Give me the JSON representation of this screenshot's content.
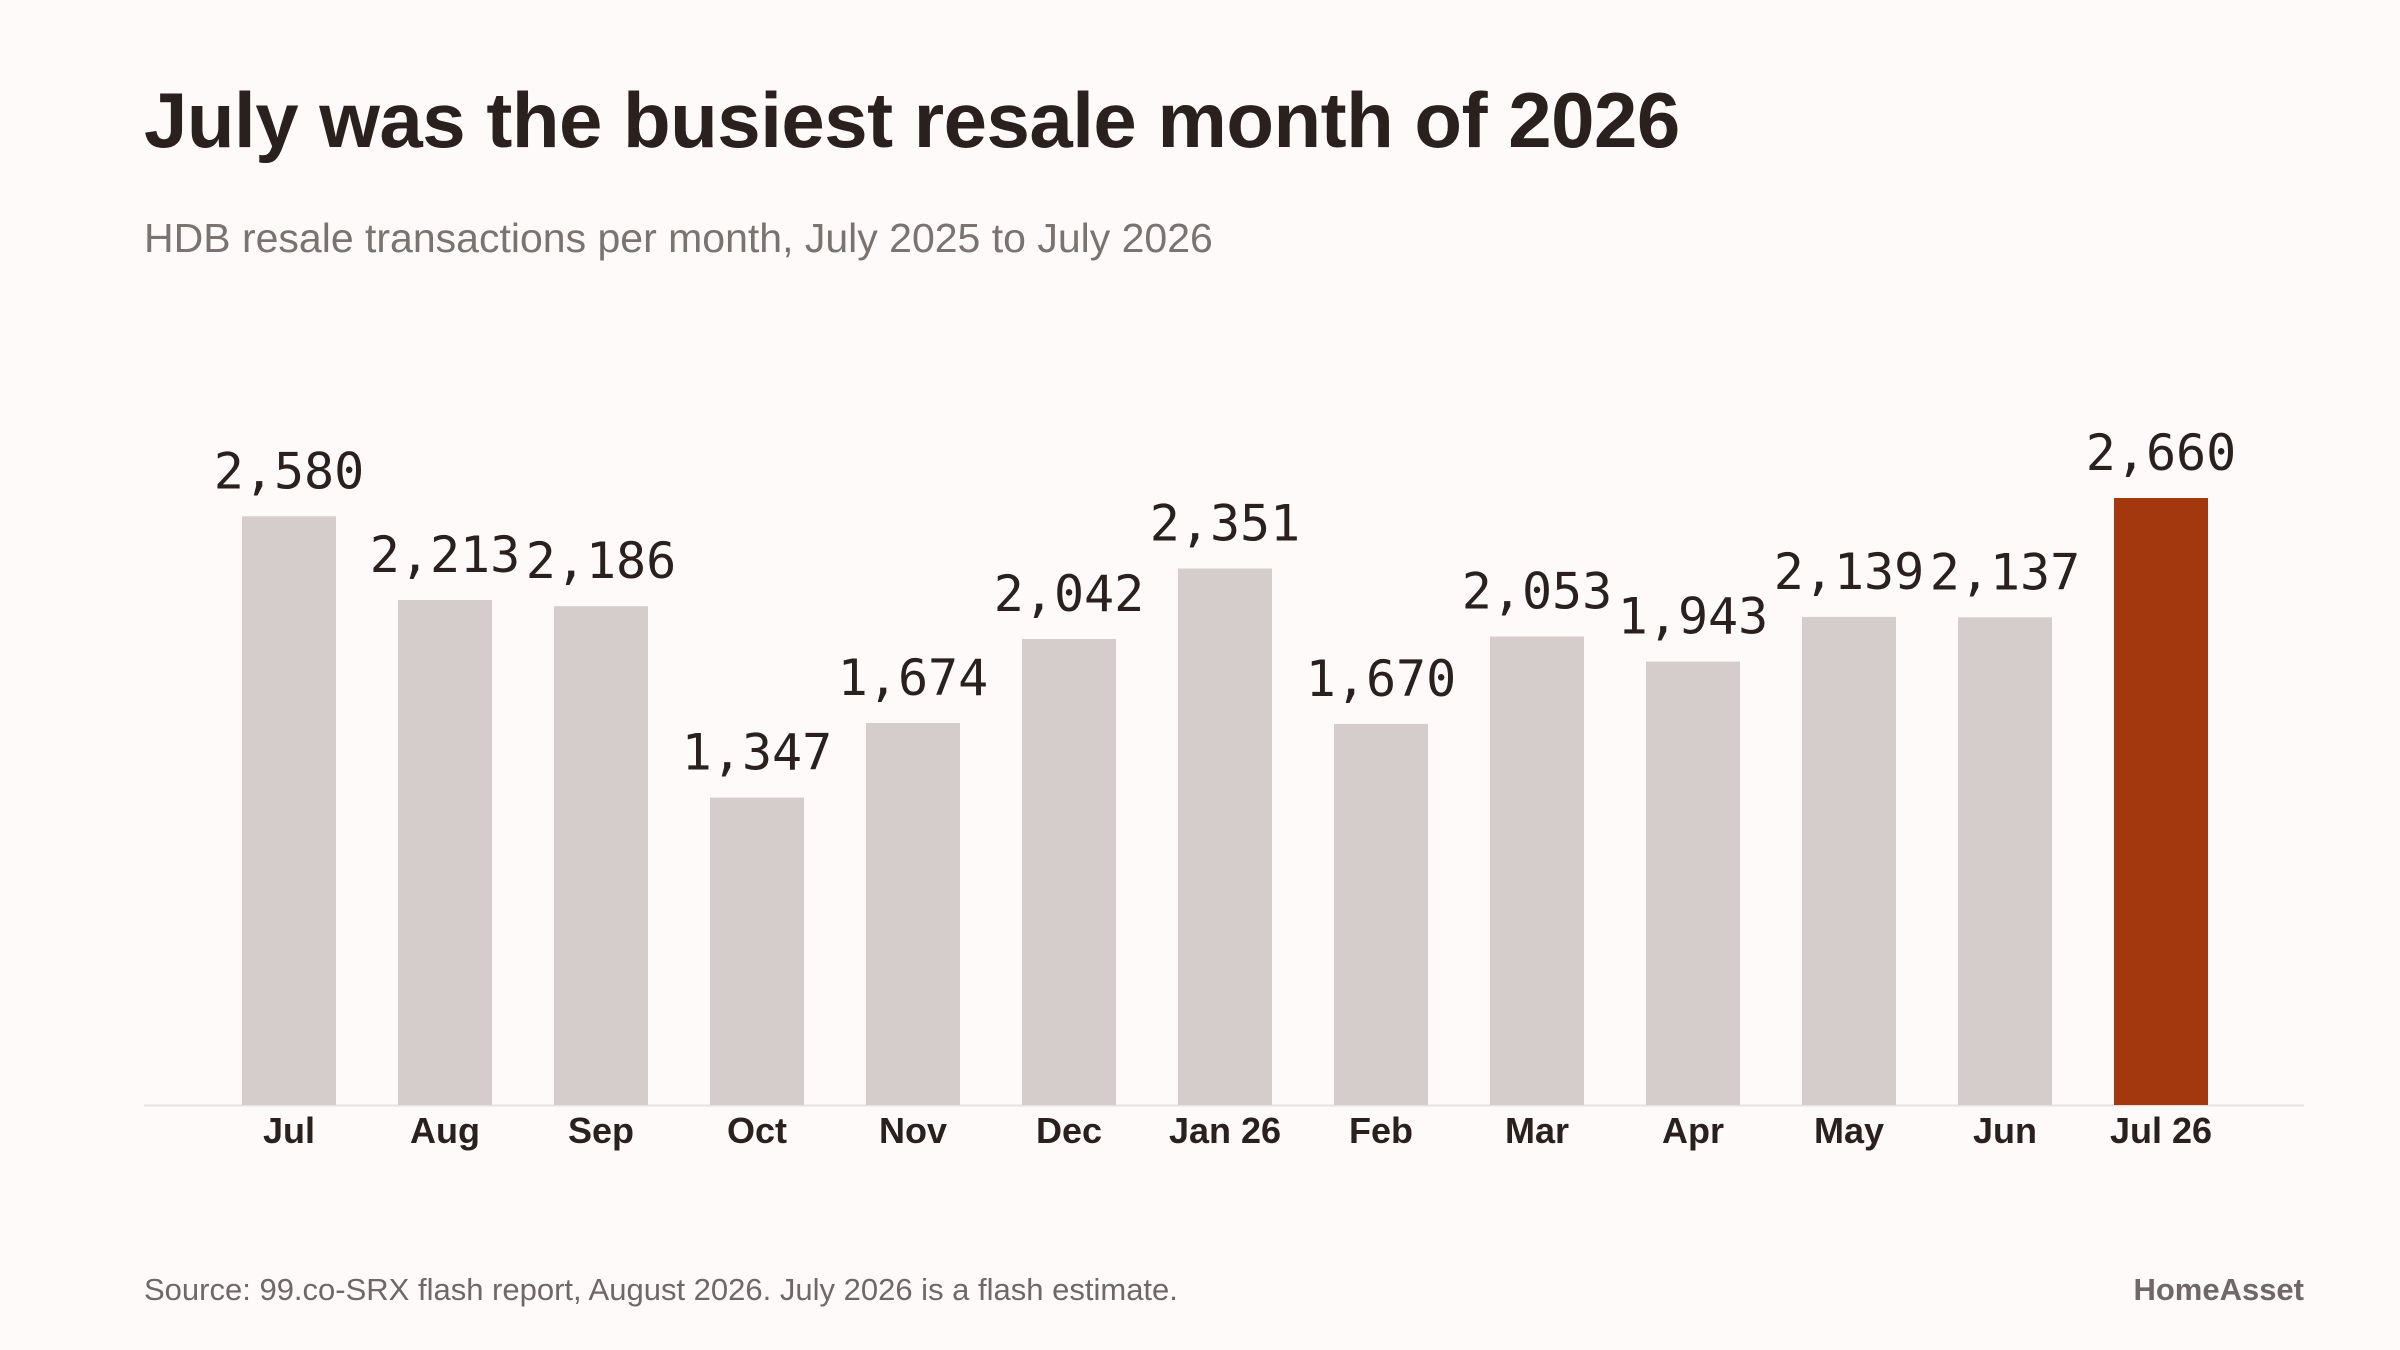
{
  "header": {
    "title": "July was the busiest resale month of 2026",
    "subtitle": "HDB resale transactions per month, July 2025 to July 2026"
  },
  "footer": {
    "source": "Source: 99.co-SRX flash report, August 2026. July 2026 is a flash estimate.",
    "brand": "HomeAsset"
  },
  "chart_data": {
    "type": "bar",
    "title": "July was the busiest resale month of 2026",
    "subtitle": "HDB resale transactions per month, July 2025 to July 2026",
    "categories": [
      "Jul",
      "Aug",
      "Sep",
      "Oct",
      "Nov",
      "Dec",
      "Jan 26",
      "Feb",
      "Mar",
      "Apr",
      "May",
      "Jun",
      "Jul 26"
    ],
    "values": [
      2580,
      2213,
      2186,
      1347,
      1674,
      2042,
      2351,
      1670,
      2053,
      1943,
      2139,
      2137,
      2660
    ],
    "value_labels": [
      "2,580",
      "2,213",
      "2,186",
      "1,347",
      "1,674",
      "2,042",
      "2,351",
      "1,670",
      "2,053",
      "1,943",
      "2,139",
      "2,137",
      "2,660"
    ],
    "highlight_index": 12,
    "ylim": [
      0,
      2660
    ],
    "grid": false,
    "legend": "none",
    "colors": {
      "bar": "#d5cdcb",
      "highlight": "#a3380e",
      "label": "#2a201d",
      "baseline": "#e8e3e1"
    }
  }
}
